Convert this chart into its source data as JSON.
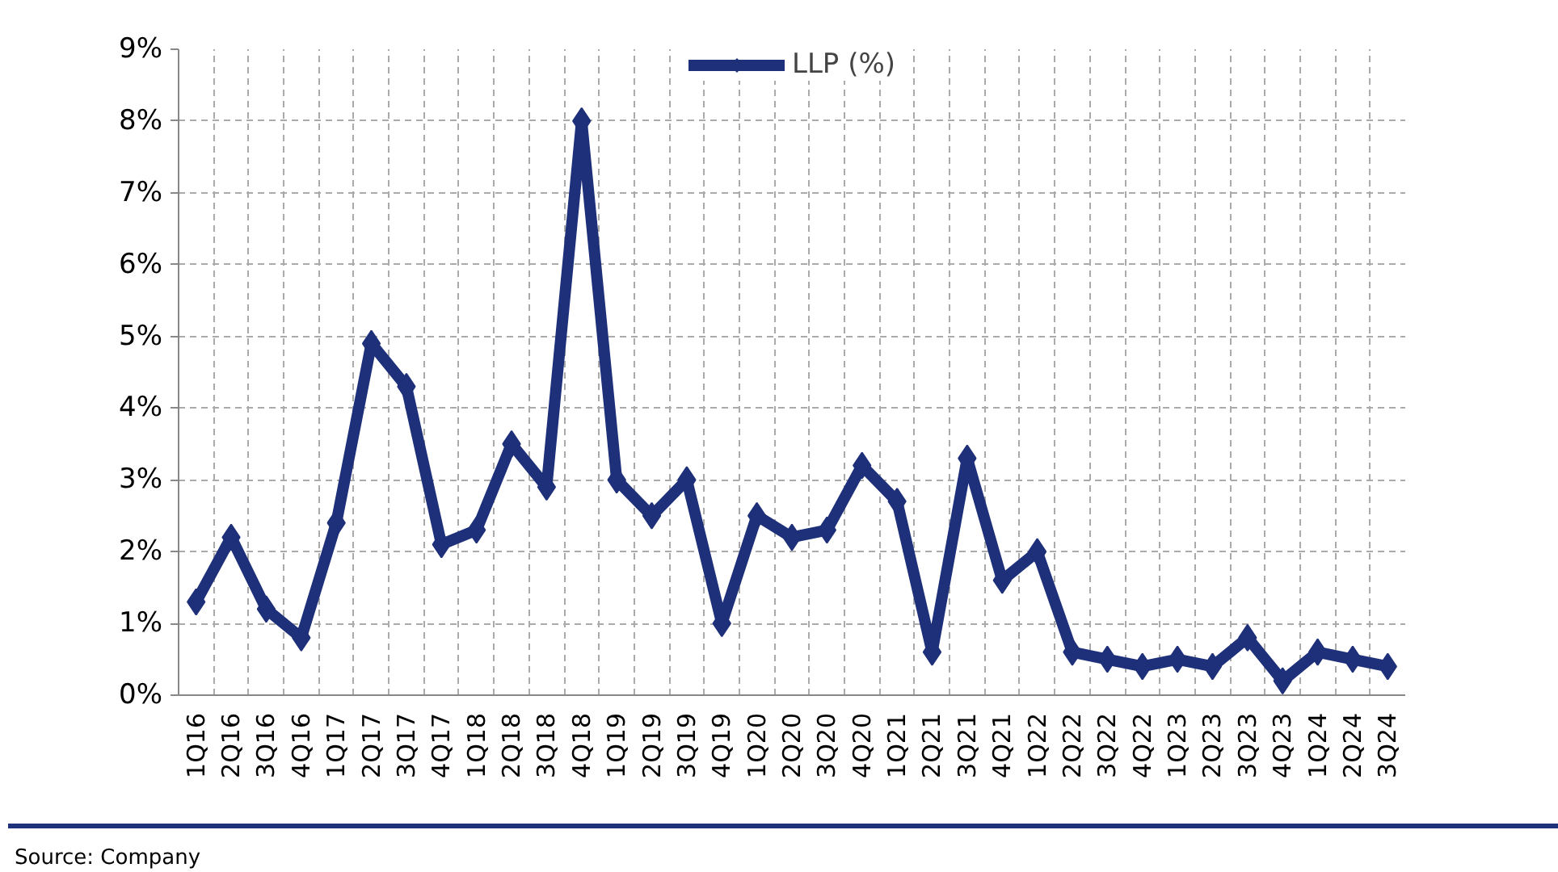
{
  "chart_data": {
    "type": "line",
    "categories": [
      "1Q16",
      "2Q16",
      "3Q16",
      "4Q16",
      "1Q17",
      "2Q17",
      "3Q17",
      "4Q17",
      "1Q18",
      "2Q18",
      "3Q18",
      "4Q18",
      "1Q19",
      "2Q19",
      "3Q19",
      "4Q19",
      "1Q20",
      "2Q20",
      "3Q20",
      "4Q20",
      "1Q21",
      "2Q21",
      "3Q21",
      "4Q21",
      "1Q22",
      "2Q22",
      "3Q22",
      "4Q22",
      "1Q23",
      "2Q23",
      "3Q23",
      "4Q23",
      "1Q24",
      "2Q24",
      "3Q24"
    ],
    "series": [
      {
        "name": "LLP (%)",
        "color": "#1f307a",
        "values": [
          1.3,
          2.2,
          1.2,
          0.8,
          2.4,
          4.9,
          4.3,
          2.1,
          2.3,
          3.5,
          2.9,
          8.0,
          3.0,
          2.5,
          3.0,
          1.0,
          2.5,
          2.2,
          2.3,
          3.2,
          2.7,
          0.6,
          3.3,
          1.6,
          2.0,
          0.6,
          0.5,
          0.4,
          0.5,
          0.4,
          0.8,
          0.2,
          0.6,
          0.5,
          0.4
        ]
      }
    ],
    "ylim": [
      0,
      9
    ],
    "yticks": [
      {
        "value": 0,
        "label": "0%"
      },
      {
        "value": 1,
        "label": "1%"
      },
      {
        "value": 2,
        "label": "2%"
      },
      {
        "value": 3,
        "label": "3%"
      },
      {
        "value": 4,
        "label": "4%"
      },
      {
        "value": 5,
        "label": "5%"
      },
      {
        "value": 6,
        "label": "6%"
      },
      {
        "value": 7,
        "label": "7%"
      },
      {
        "value": 8,
        "label": "8%"
      },
      {
        "value": 9,
        "label": "9%"
      }
    ],
    "grid": true,
    "legend": "top",
    "marker": "diamond",
    "line_style": "solid",
    "annotations": [
      "Source: Company"
    ]
  }
}
